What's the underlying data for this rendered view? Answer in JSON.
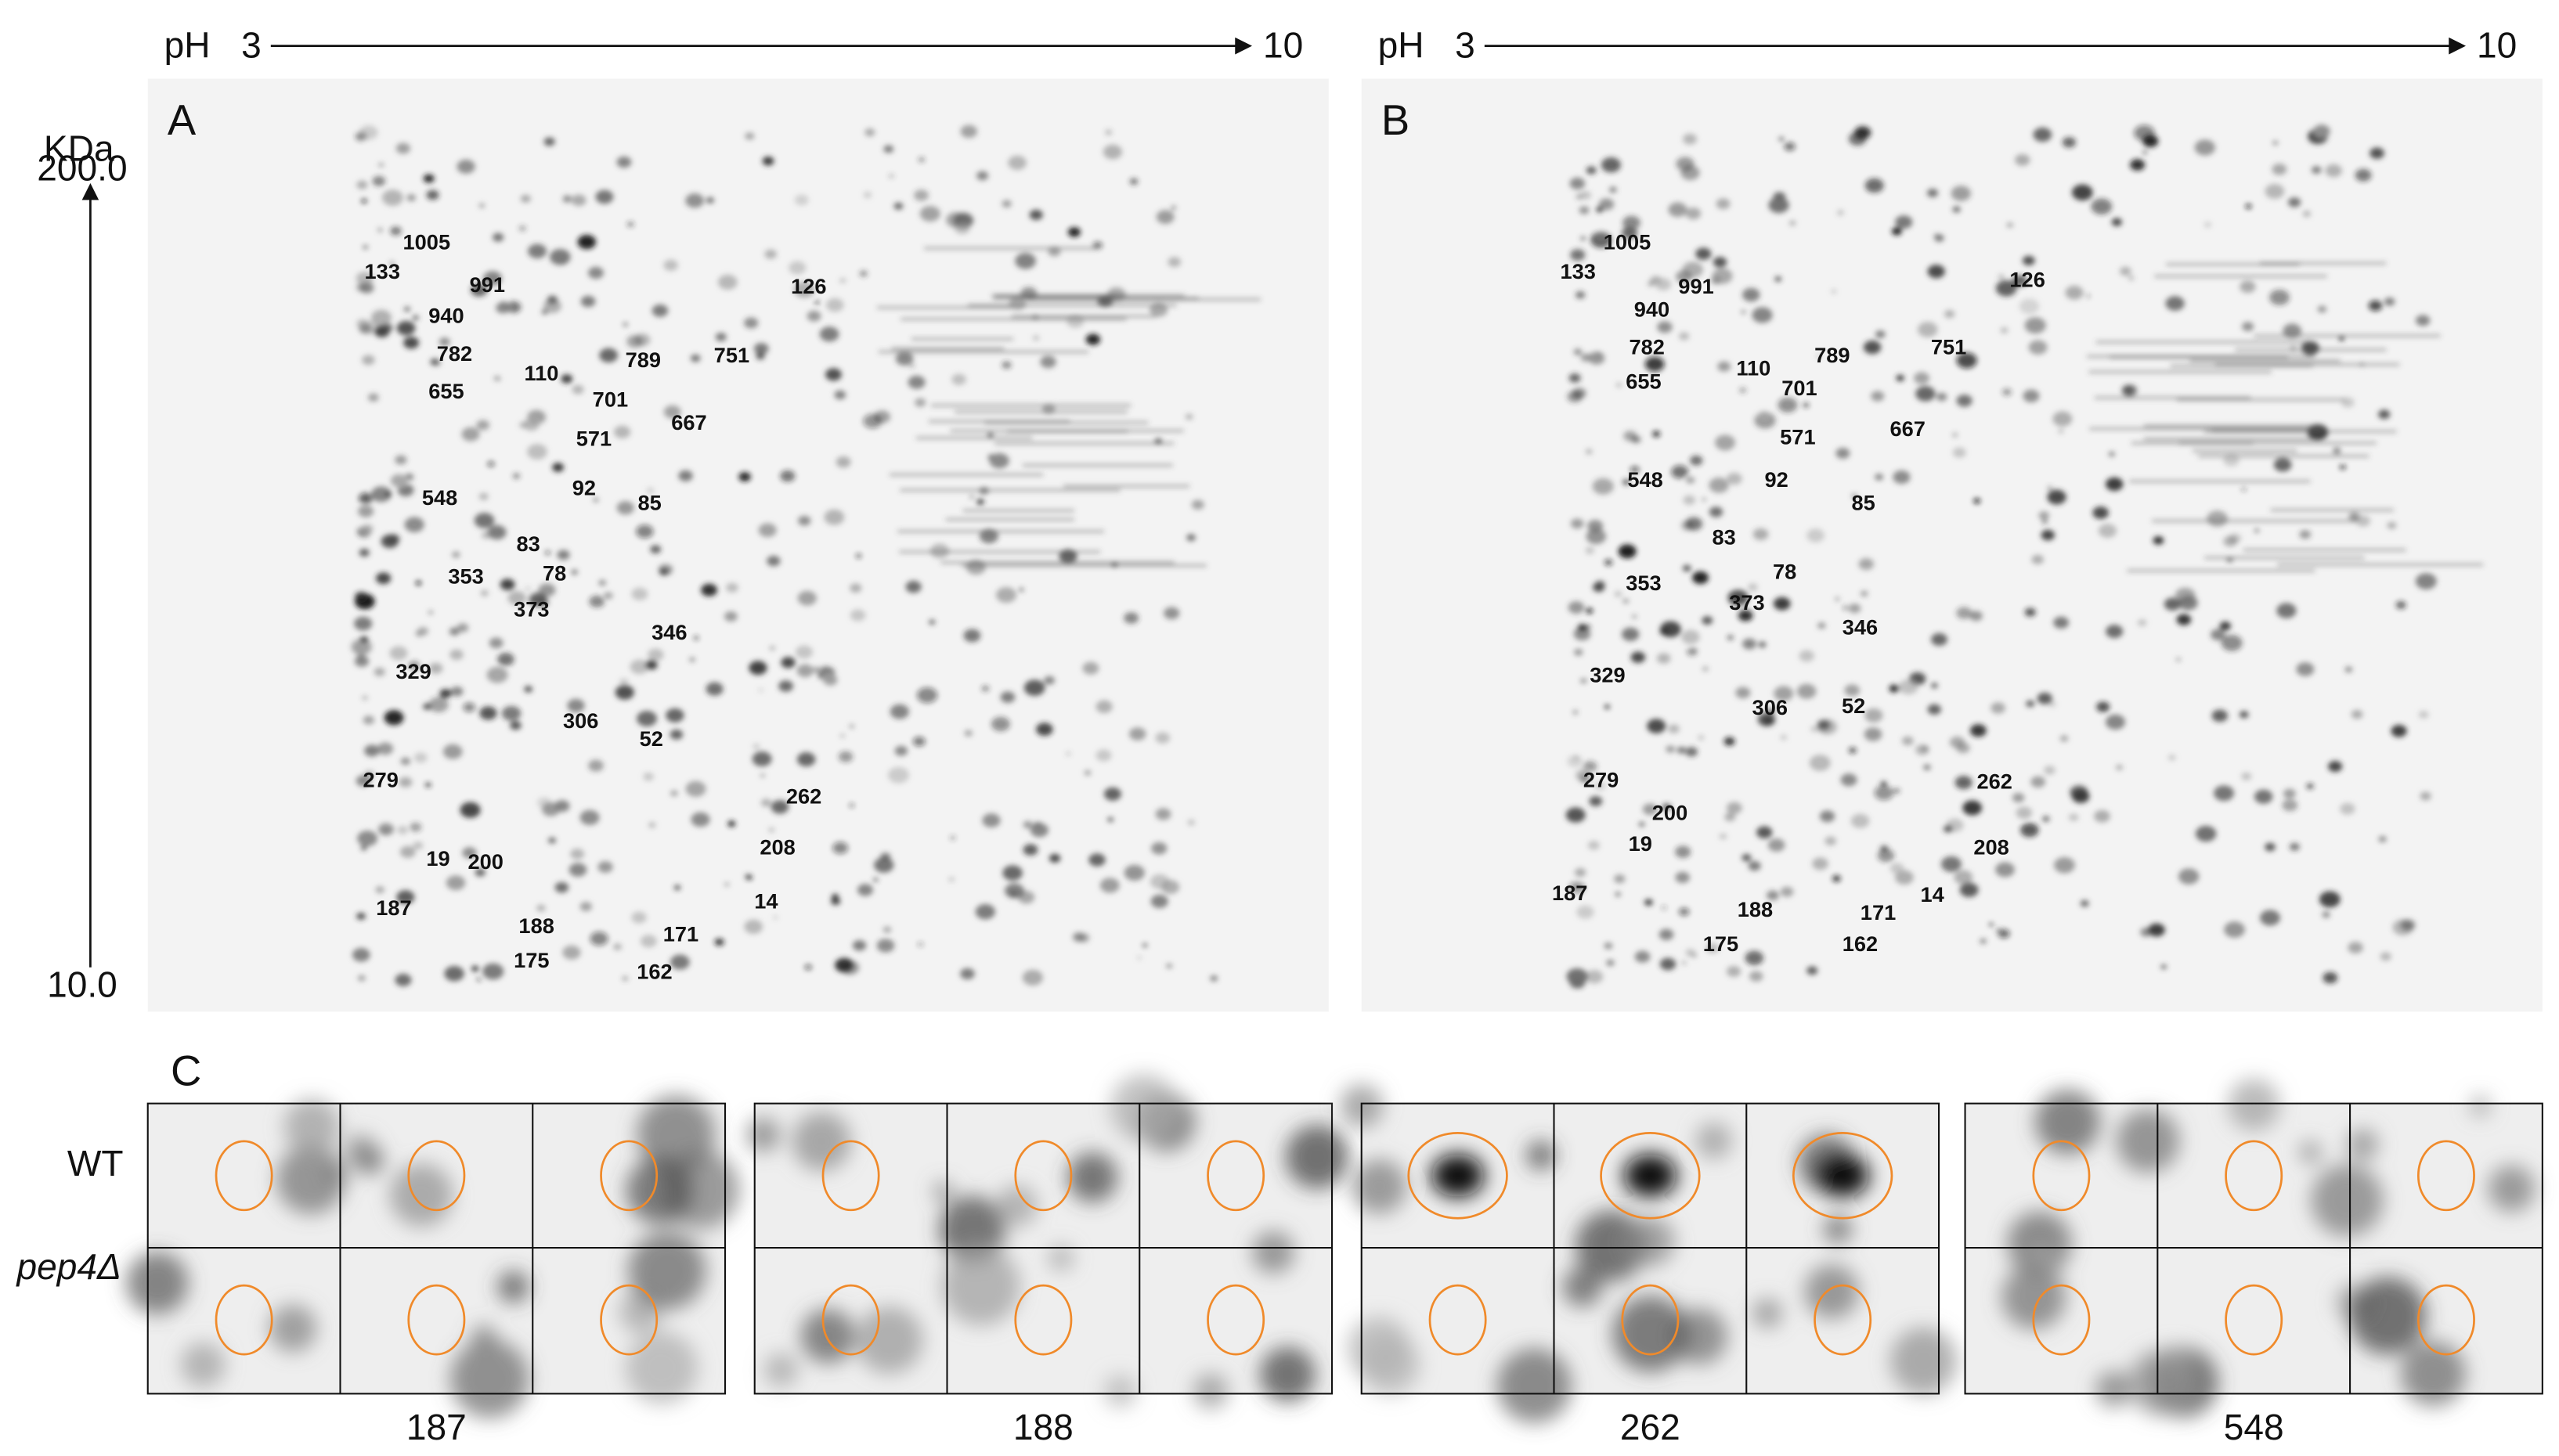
{
  "ph_axis": {
    "label": "pH",
    "start": "3",
    "end": "10"
  },
  "mw_axis": {
    "unit": "KDa",
    "top": "200.0",
    "bottom": "10.0"
  },
  "panels": [
    {
      "label": "A",
      "spots": [
        "1005",
        "133",
        "991",
        "126",
        "940",
        "782",
        "789",
        "751",
        "110",
        "701",
        "655",
        "667",
        "571",
        "548",
        "92",
        "85",
        "83",
        "78",
        "353",
        "373",
        "346",
        "329",
        "306",
        "52",
        "279",
        "262",
        "208",
        "19",
        "200",
        "187",
        "14",
        "188",
        "171",
        "175",
        "162"
      ]
    },
    {
      "label": "B",
      "spots": [
        "1005",
        "133",
        "991",
        "126",
        "940",
        "782",
        "789",
        "751",
        "110",
        "701",
        "655",
        "667",
        "571",
        "548",
        "92",
        "85",
        "83",
        "78",
        "353",
        "373",
        "346",
        "329",
        "306",
        "52",
        "279",
        "262",
        "208",
        "19",
        "200",
        "187",
        "14",
        "188",
        "171",
        "175",
        "162"
      ]
    }
  ],
  "panel_c": {
    "label": "C",
    "rows": [
      "WT",
      "pep4Δ"
    ],
    "groups": [
      "187",
      "188",
      "262",
      "548"
    ]
  }
}
